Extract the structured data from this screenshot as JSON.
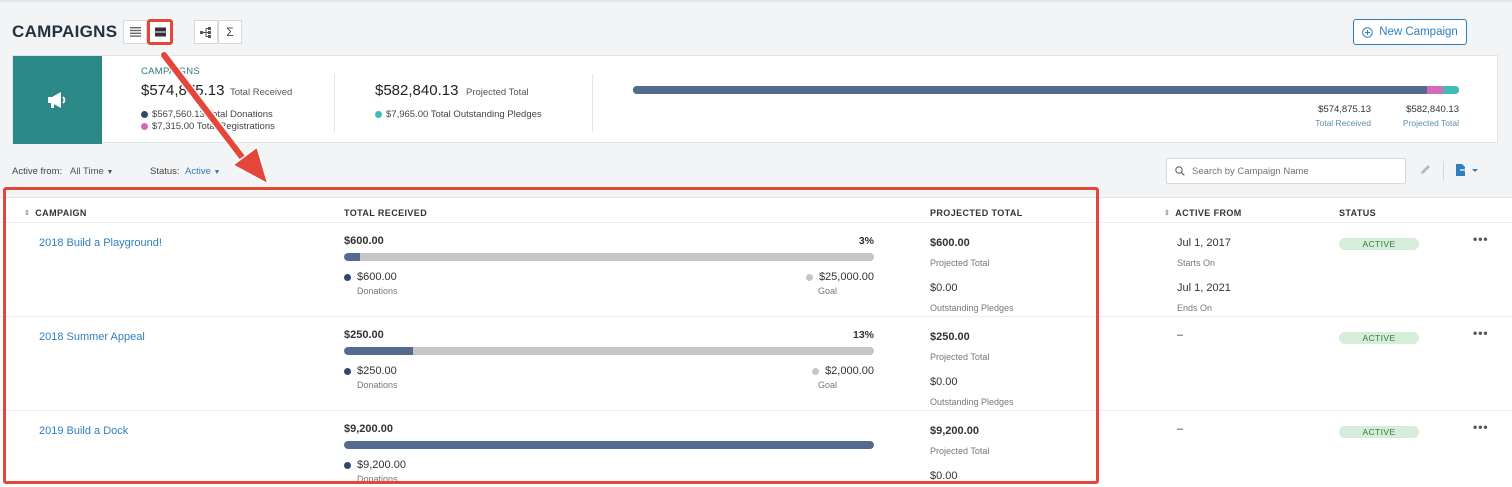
{
  "header": {
    "title": "CAMPAIGNS",
    "new_button_label": "New Campaign",
    "view_icons": [
      "list-view-icon",
      "card-view-icon",
      "hierarchy-view-icon",
      "sigma-icon"
    ]
  },
  "summary": {
    "label": "CAMPAIGNS",
    "total_received": "$574,875.13",
    "total_received_label": "Total Received",
    "donations_line": "$567,560.13 Total Donations",
    "registrations_line": "$7,315.00 Total Registrations",
    "projected_total": "$582,840.13",
    "projected_total_label": "Projected Total",
    "outstanding_line": "$7,965.00 Total Outstanding Pledges",
    "bar_received_value": "$574,875.13",
    "bar_received_label": "Total Received",
    "bar_projected_value": "$582,840.13",
    "bar_projected_label": "Projected Total",
    "colors": {
      "donations": "#556a8f",
      "registrations": "#d36ab8",
      "pledges": "#3fbcb5"
    }
  },
  "filters": {
    "active_from_label": "Active from:",
    "active_from_value": "All Time",
    "status_label": "Status:",
    "status_value": "Active",
    "search_placeholder": "Search by Campaign Name"
  },
  "table": {
    "headers": {
      "campaign": "CAMPAIGN",
      "total_received": "TOTAL RECEIVED",
      "projected_total": "PROJECTED TOTAL",
      "active_from": "ACTIVE FROM",
      "status": "STATUS"
    },
    "rows": [
      {
        "name": "2018 Build a Playground!",
        "received": "$600.00",
        "percent": "3%",
        "progress": 0.03,
        "donations": "$600.00",
        "donations_label": "Donations",
        "goal": "$25,000.00",
        "goal_label": "Goal",
        "projected": "$600.00",
        "projected_label": "Projected Total",
        "pledges": "$0.00",
        "pledges_label": "Outstanding Pledges",
        "starts": "Jul 1, 2017",
        "starts_label": "Starts On",
        "ends": "Jul 1, 2021",
        "ends_label": "Ends On",
        "status": "ACTIVE"
      },
      {
        "name": "2018 Summer Appeal",
        "received": "$250.00",
        "percent": "13%",
        "progress": 0.13,
        "donations": "$250.00",
        "donations_label": "Donations",
        "goal": "$2,000.00",
        "goal_label": "Goal",
        "projected": "$250.00",
        "projected_label": "Projected Total",
        "pledges": "$0.00",
        "pledges_label": "Outstanding Pledges",
        "active_from": "–",
        "status": "ACTIVE"
      },
      {
        "name": "2019 Build a Dock",
        "received": "$9,200.00",
        "progress": 1.0,
        "donations": "$9,200.00",
        "donations_label": "Donations",
        "projected": "$9,200.00",
        "projected_label": "Projected Total",
        "pledges": "$0.00",
        "active_from": "–",
        "status": "ACTIVE"
      }
    ]
  }
}
